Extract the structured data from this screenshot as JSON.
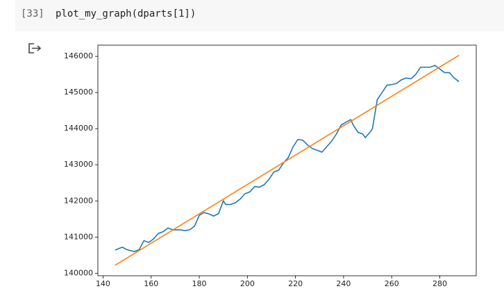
{
  "cell": {
    "prompt": "[33]",
    "code": "plot_my_graph(dparts[1])"
  },
  "chart_data": {
    "type": "line",
    "xlim": [
      137.85,
      295.15
    ],
    "ylim": [
      139930,
      146310
    ],
    "xticks": [
      140,
      160,
      180,
      200,
      220,
      240,
      260,
      280
    ],
    "yticks": [
      140000,
      141000,
      142000,
      143000,
      144000,
      145000,
      146000
    ],
    "series": [
      {
        "color": "#1f77b4",
        "x": [
          145,
          148,
          150,
          153,
          155,
          157,
          159,
          161,
          163,
          165,
          167,
          169,
          172,
          174,
          176,
          178,
          180,
          182,
          184,
          186,
          188,
          190,
          191,
          193,
          195,
          197,
          199,
          201,
          203,
          205,
          207,
          209,
          211,
          213,
          215,
          217,
          219,
          221,
          223,
          225,
          227,
          229,
          231,
          233,
          235,
          237,
          239,
          241,
          243,
          244,
          246,
          248,
          249,
          251,
          252,
          254,
          256,
          258,
          260,
          262,
          264,
          266,
          268,
          270,
          272,
          274,
          276,
          278,
          280,
          282,
          284,
          286,
          288
        ],
        "values": [
          140640,
          140720,
          140650,
          140600,
          140650,
          140900,
          140850,
          140950,
          141100,
          141150,
          141250,
          141200,
          141200,
          141180,
          141200,
          141300,
          141600,
          141680,
          141640,
          141580,
          141650,
          142000,
          141900,
          141900,
          141950,
          142050,
          142200,
          142250,
          142400,
          142380,
          142450,
          142600,
          142800,
          142850,
          143050,
          143200,
          143500,
          143700,
          143680,
          143550,
          143450,
          143400,
          143350,
          143500,
          143650,
          143850,
          144100,
          144180,
          144250,
          144100,
          143900,
          143850,
          143750,
          143900,
          144000,
          144800,
          145000,
          145200,
          145220,
          145250,
          145350,
          145400,
          145380,
          145500,
          145700,
          145700,
          145700,
          145750,
          145650,
          145550,
          145550,
          145400,
          145300
        ]
      },
      {
        "color": "#ff7f0e",
        "x": [
          145,
          288
        ],
        "values": [
          140220,
          146030
        ]
      }
    ]
  }
}
